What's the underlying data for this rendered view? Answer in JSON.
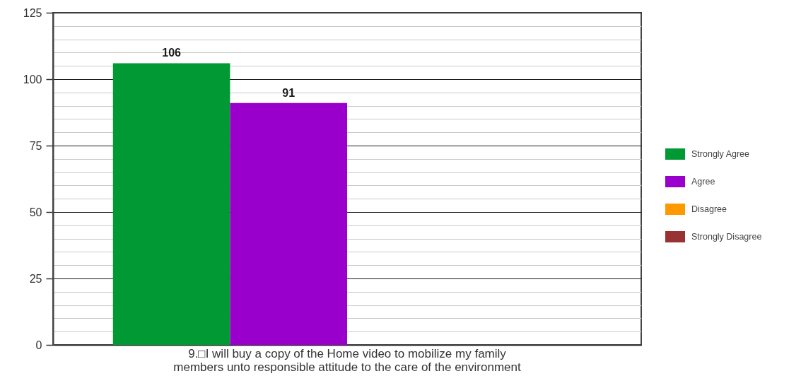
{
  "chart_data": {
    "type": "bar",
    "categories": [
      "9.□I will buy a copy of the Home video to mobilize my family members unto responsible attitude to the care of the environment"
    ],
    "series": [
      {
        "name": "Strongly Agree",
        "color": "#009933",
        "values": [
          106
        ],
        "value_labels": [
          "106"
        ]
      },
      {
        "name": "Agree",
        "color": "#9900cc",
        "values": [
          91
        ],
        "value_labels": [
          "91"
        ]
      },
      {
        "name": "Disagree",
        "color": "#ff9900",
        "values": [
          0
        ],
        "value_labels": [
          null
        ]
      },
      {
        "name": "Strongly Disagree",
        "color": "#993333",
        "values": [
          0
        ],
        "value_labels": [
          null
        ]
      }
    ],
    "ylim": [
      0,
      125
    ],
    "yticks": [
      0,
      {
        "value": 5,
        "label": null
      },
      {
        "value": 10,
        "label": null
      },
      {
        "value": 15,
        "label": null
      },
      {
        "value": 20,
        "label": null
      },
      25,
      {
        "value": 30,
        "label": null
      },
      {
        "value": 35,
        "label": null
      },
      {
        "value": 40,
        "label": null
      },
      {
        "value": 45,
        "label": null
      },
      50,
      {
        "value": 55,
        "label": null
      },
      {
        "value": 60,
        "label": null
      },
      {
        "value": 65,
        "label": null
      },
      {
        "value": 70,
        "label": null
      },
      75,
      {
        "value": 80,
        "label": null
      },
      {
        "value": 85,
        "label": null
      },
      {
        "value": 90,
        "label": null
      },
      {
        "value": 95,
        "label": null
      },
      100,
      {
        "value": 105,
        "label": null
      },
      {
        "value": 110,
        "label": null
      },
      {
        "value": 115,
        "label": null
      },
      {
        "value": 120,
        "label": null
      },
      125
    ],
    "grid": "y",
    "legend": "right"
  }
}
